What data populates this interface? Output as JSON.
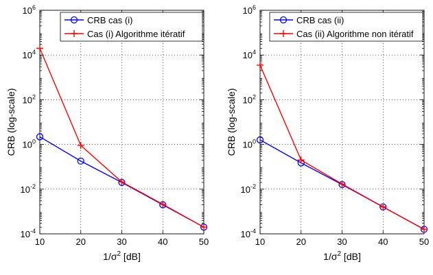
{
  "chart_data": [
    {
      "type": "line",
      "yscale": "log",
      "xlabel_base": "1/σ",
      "xlabel_sup": "2",
      "xlabel_unit": " [dB]",
      "ylabel": "CRB (log-scale)",
      "xlim": [
        10,
        50
      ],
      "ylim": [
        0.0001,
        1000000
      ],
      "grid": true,
      "legend_position": "top-right",
      "x_ticks": [
        "10",
        "20",
        "30",
        "40",
        "50"
      ],
      "y_ticks": [
        {
          "value": 0.0001,
          "base": "10",
          "exp": "-4"
        },
        {
          "value": 0.01,
          "base": "10",
          "exp": "-2"
        },
        {
          "value": 1,
          "base": "10",
          "exp": "0"
        },
        {
          "value": 100,
          "base": "10",
          "exp": "2"
        },
        {
          "value": 10000,
          "base": "10",
          "exp": "4"
        },
        {
          "value": 1000000,
          "base": "10",
          "exp": "6"
        }
      ],
      "x": [
        10,
        20,
        30,
        40,
        50
      ],
      "series": [
        {
          "name": "CRB cas (i)",
          "color": "#0000ff",
          "marker": "circle",
          "values": [
            2.2,
            0.18,
            0.02,
            0.002,
            0.0002
          ]
        },
        {
          "name": "Cas (i) Algorithme itératif",
          "color": "#ff0000",
          "marker": "plus",
          "values": [
            20000,
            0.9,
            0.021,
            0.0021,
            0.0002
          ]
        }
      ]
    },
    {
      "type": "line",
      "yscale": "log",
      "xlabel_base": "1/σ",
      "xlabel_sup": "2",
      "xlabel_unit": " [dB]",
      "ylabel": "CRB (log-scale)",
      "xlim": [
        10,
        50
      ],
      "ylim": [
        0.0001,
        1000000
      ],
      "grid": true,
      "legend_position": "top-right",
      "x_ticks": [
        "10",
        "20",
        "30",
        "40",
        "50"
      ],
      "y_ticks": [
        {
          "value": 0.0001,
          "base": "10",
          "exp": "-4"
        },
        {
          "value": 0.01,
          "base": "10",
          "exp": "-2"
        },
        {
          "value": 1,
          "base": "10",
          "exp": "0"
        },
        {
          "value": 100,
          "base": "10",
          "exp": "2"
        },
        {
          "value": 10000,
          "base": "10",
          "exp": "4"
        },
        {
          "value": 1000000,
          "base": "10",
          "exp": "6"
        }
      ],
      "x": [
        10,
        20,
        30,
        40,
        50
      ],
      "series": [
        {
          "name": "CRB cas (ii)",
          "color": "#0000ff",
          "marker": "circle",
          "values": [
            1.6,
            0.15,
            0.016,
            0.0016,
            0.00016
          ]
        },
        {
          "name": "Cas (ii) Algorithme non itératif",
          "color": "#ff0000",
          "marker": "plus",
          "values": [
            3500,
            0.2,
            0.017,
            0.0016,
            0.00016
          ]
        }
      ]
    }
  ]
}
